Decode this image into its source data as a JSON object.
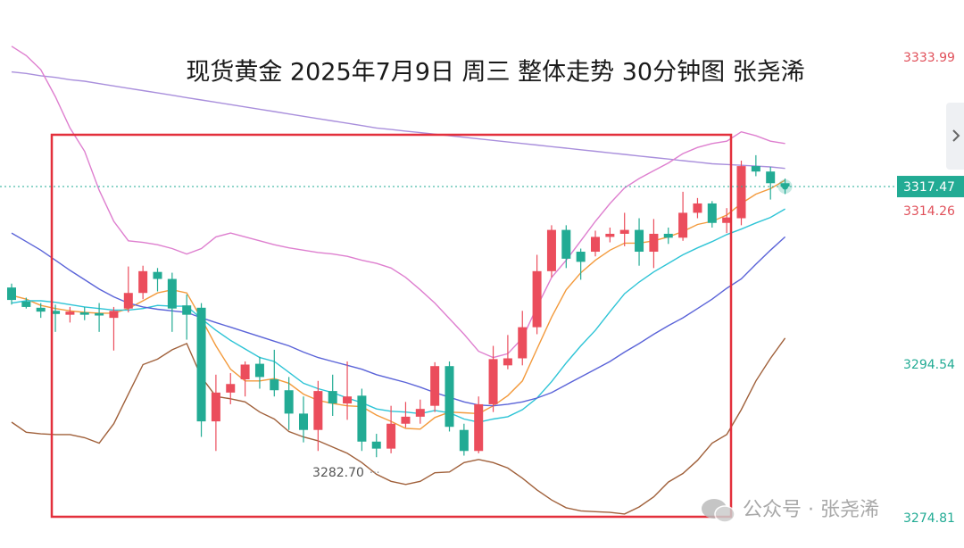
{
  "chart_data": {
    "type": "candlestick",
    "title": "现货黄金 2025年7月9日 周三 整体走势 30分钟图 张尧浠",
    "annotation": "3282.70",
    "watermark": "公众号 · 张尧浠",
    "up_color": "#eb4d5c",
    "down_color": "#22ab94",
    "ylim": [
      3271.03,
      3341.44
    ],
    "yticks": [
      3333.99,
      3314.26,
      3294.54,
      3274.81
    ],
    "ytick_colors": [
      "#e0505a",
      "#e0505a",
      "#22ab94",
      "#22ab94"
    ],
    "last_price": 3317.47,
    "last_price_color": "#22ab94",
    "open": [
      3304.5,
      3302.7,
      3301.9,
      3301.5,
      3301.0,
      3301.3,
      3301.2,
      3300.6,
      3301.8,
      3303.8,
      3306.5,
      3305.6,
      3302.2,
      3301.9,
      3287.3,
      3291.0,
      3292.7,
      3294.7,
      3292.7,
      3291.3,
      3288.3,
      3286.2,
      3291.2,
      3289.6,
      3290.6,
      3284.7,
      3283.8,
      3287.0,
      3287.9,
      3289.3,
      3294.4,
      3286.2,
      3283.5,
      3289.5,
      3294.5,
      3295.4,
      3299.4,
      3306.6,
      3311.9,
      3309.1,
      3309.1,
      3311.0,
      3311.4,
      3311.9,
      3309.1,
      3311.4,
      3310.9,
      3314.1,
      3315.3,
      3312.8,
      3313.4,
      3320.1,
      3319.4,
      3317.9
    ],
    "high": [
      3305.0,
      3303.2,
      3302.5,
      3302.3,
      3302.0,
      3302.0,
      3302.5,
      3302.0,
      3307.2,
      3307.3,
      3307.0,
      3306.4,
      3303.6,
      3302.5,
      3293.3,
      3293.5,
      3295.0,
      3295.6,
      3296.5,
      3293.0,
      3290.5,
      3292.5,
      3293.3,
      3295.0,
      3291.5,
      3285.7,
      3289.3,
      3289.8,
      3290.1,
      3294.9,
      3295.0,
      3287.0,
      3290.5,
      3297.0,
      3298.4,
      3301.5,
      3308.7,
      3312.5,
      3312.5,
      3309.5,
      3311.8,
      3312.2,
      3314.1,
      3313.4,
      3313.3,
      3312.2,
      3316.8,
      3316.0,
      3315.6,
      3314.7,
      3320.8,
      3321.5,
      3320.0,
      3318.5
    ],
    "low": [
      3302.3,
      3301.8,
      3300.6,
      3298.8,
      3300.0,
      3300.3,
      3298.8,
      3296.4,
      3301.3,
      3303.0,
      3304.0,
      3298.8,
      3297.8,
      3285.3,
      3283.5,
      3289.5,
      3290.5,
      3291.5,
      3290.5,
      3286.2,
      3284.6,
      3283.5,
      3288.0,
      3287.5,
      3283.5,
      3282.7,
      3283.2,
      3286.5,
      3287.0,
      3288.5,
      3286.0,
      3282.9,
      3283.2,
      3288.5,
      3294.0,
      3294.5,
      3298.5,
      3305.8,
      3307.0,
      3305.5,
      3308.5,
      3310.3,
      3309.8,
      3307.3,
      3307.0,
      3310.1,
      3310.5,
      3313.4,
      3312.2,
      3311.5,
      3312.5,
      3318.8,
      3315.8,
      3316.5
    ],
    "close": [
      3302.9,
      3302.0,
      3301.4,
      3301.1,
      3301.4,
      3301.0,
      3300.9,
      3301.5,
      3303.8,
      3306.6,
      3305.6,
      3301.8,
      3301.0,
      3287.3,
      3291.0,
      3292.1,
      3294.6,
      3293.0,
      3291.3,
      3288.3,
      3286.2,
      3291.2,
      3289.6,
      3290.5,
      3284.7,
      3283.8,
      3287.0,
      3287.9,
      3288.9,
      3294.4,
      3286.6,
      3283.5,
      3289.5,
      3295.3,
      3295.4,
      3299.4,
      3306.6,
      3311.9,
      3308.2,
      3307.8,
      3311.0,
      3311.4,
      3311.9,
      3309.1,
      3311.4,
      3310.9,
      3314.1,
      3315.3,
      3312.8,
      3313.5,
      3320.1,
      3319.4,
      3317.9,
      3317.47
    ],
    "lines": [
      {
        "color": "#f39a3c",
        "values": [
          3303.5,
          3303,
          3302.2,
          3301.8,
          3301.5,
          3301.3,
          3301.2,
          3301.2,
          3301.8,
          3302.8,
          3303.8,
          3304.2,
          3303.8,
          3300.5,
          3297,
          3294,
          3292.5,
          3292.5,
          3292.8,
          3292.2,
          3290.8,
          3290,
          3289.6,
          3289.3,
          3289.2,
          3288.1,
          3287.3,
          3286.4,
          3286.3,
          3287.8,
          3288.5,
          3288.4,
          3288.3,
          3289.3,
          3290.6,
          3292.5,
          3296.6,
          3300.7,
          3304.2,
          3306.4,
          3308,
          3309.3,
          3310.2,
          3310.2,
          3310.5,
          3311,
          3311.7,
          3312.6,
          3313,
          3313.8,
          3315.3,
          3316.5,
          3317.2,
          3318.3
        ]
      },
      {
        "color": "#2ec4d6",
        "values": [
          3302.5,
          3302.8,
          3302.8,
          3302.6,
          3302.3,
          3302,
          3301.8,
          3301.6,
          3301.6,
          3301.8,
          3302.2,
          3302.1,
          3302.1,
          3300.5,
          3299,
          3297.7,
          3296.6,
          3295.5,
          3295,
          3293.6,
          3292.2,
          3291.5,
          3291,
          3290.3,
          3289.7,
          3288.9,
          3288.6,
          3288.5,
          3288.3,
          3288.7,
          3288.4,
          3287.6,
          3287.2,
          3287.6,
          3287.9,
          3288.8,
          3290.3,
          3292.4,
          3294.8,
          3297,
          3299,
          3301.4,
          3303.7,
          3305.2,
          3306.5,
          3307.6,
          3308.7,
          3309.6,
          3310.4,
          3311.3,
          3312,
          3312.8,
          3313.5,
          3314.6
        ]
      },
      {
        "color": "#5a63d8",
        "values": [
          3311.5,
          3310.4,
          3309.3,
          3308,
          3306.7,
          3305.5,
          3304.3,
          3303.3,
          3302.5,
          3302,
          3301.7,
          3301.5,
          3301.3,
          3300.6,
          3300,
          3299.4,
          3298.8,
          3298.2,
          3297.6,
          3297,
          3296.2,
          3295.5,
          3295,
          3294.5,
          3294,
          3293.3,
          3292.8,
          3292.3,
          3291.7,
          3291,
          3290.4,
          3289.8,
          3289.4,
          3289.3,
          3289.5,
          3289.8,
          3290.3,
          3291,
          3292,
          3293,
          3294,
          3295,
          3296.2,
          3297.3,
          3298.5,
          3299.6,
          3300.6,
          3301.8,
          3303,
          3304.4,
          3305.6,
          3307.5,
          3309.3,
          3311
        ]
      },
      {
        "color": "#a98fdc",
        "values": [
          3332.2,
          3332,
          3331.7,
          3331.5,
          3331.2,
          3331,
          3330.7,
          3330.4,
          3330.1,
          3329.8,
          3329.5,
          3329.2,
          3328.9,
          3328.6,
          3328.3,
          3328,
          3327.7,
          3327.4,
          3327.1,
          3326.8,
          3326.5,
          3326.2,
          3325.9,
          3325.6,
          3325.3,
          3325,
          3324.8,
          3324.6,
          3324.4,
          3324.2,
          3324,
          3323.8,
          3323.6,
          3323.4,
          3323.2,
          3323,
          3322.8,
          3322.6,
          3322.4,
          3322.2,
          3322,
          3321.8,
          3321.6,
          3321.4,
          3321.2,
          3321,
          3320.8,
          3320.6,
          3320.4,
          3320.3,
          3320.2,
          3320.1,
          3320,
          3319.8
        ]
      },
      {
        "color": "#de7fcf",
        "values": [
          3335.5,
          3334.3,
          3332.5,
          3329,
          3325,
          3322,
          3317,
          3313,
          3310.5,
          3310.3,
          3310,
          3309.5,
          3308.8,
          3309.5,
          3311,
          3311.5,
          3311,
          3310.5,
          3310,
          3309.6,
          3309.3,
          3309,
          3308.8,
          3308.5,
          3308,
          3307.6,
          3307,
          3305.8,
          3304.2,
          3302.5,
          3300.5,
          3298.5,
          3296.3,
          3295.5,
          3296,
          3298,
          3302,
          3305.8,
          3308,
          3310.5,
          3313,
          3315.3,
          3317.3,
          3318.5,
          3319.5,
          3320.5,
          3321.7,
          3322.5,
          3323,
          3323.3,
          3324.5,
          3324,
          3323.3,
          3323
        ]
      },
      {
        "color": "#a0603a",
        "values": [
          3287.2,
          3285.9,
          3285.7,
          3285.6,
          3285.6,
          3285.2,
          3284.5,
          3287,
          3290.8,
          3294.6,
          3295.3,
          3296.5,
          3297.3,
          3293,
          3290.5,
          3290.2,
          3289.8,
          3288.5,
          3287.6,
          3286,
          3285.3,
          3284.8,
          3284,
          3283.2,
          3282,
          3280.5,
          3279.6,
          3279.2,
          3279.6,
          3280.7,
          3280.8,
          3282,
          3282.4,
          3282,
          3281.3,
          3280,
          3278.5,
          3277.2,
          3276.2,
          3275.8,
          3275.7,
          3275.6,
          3275.4,
          3276.3,
          3277.6,
          3279.5,
          3280.6,
          3282.3,
          3284.5,
          3285.6,
          3288.8,
          3292.5,
          3295.4,
          3298
        ]
      }
    ]
  }
}
